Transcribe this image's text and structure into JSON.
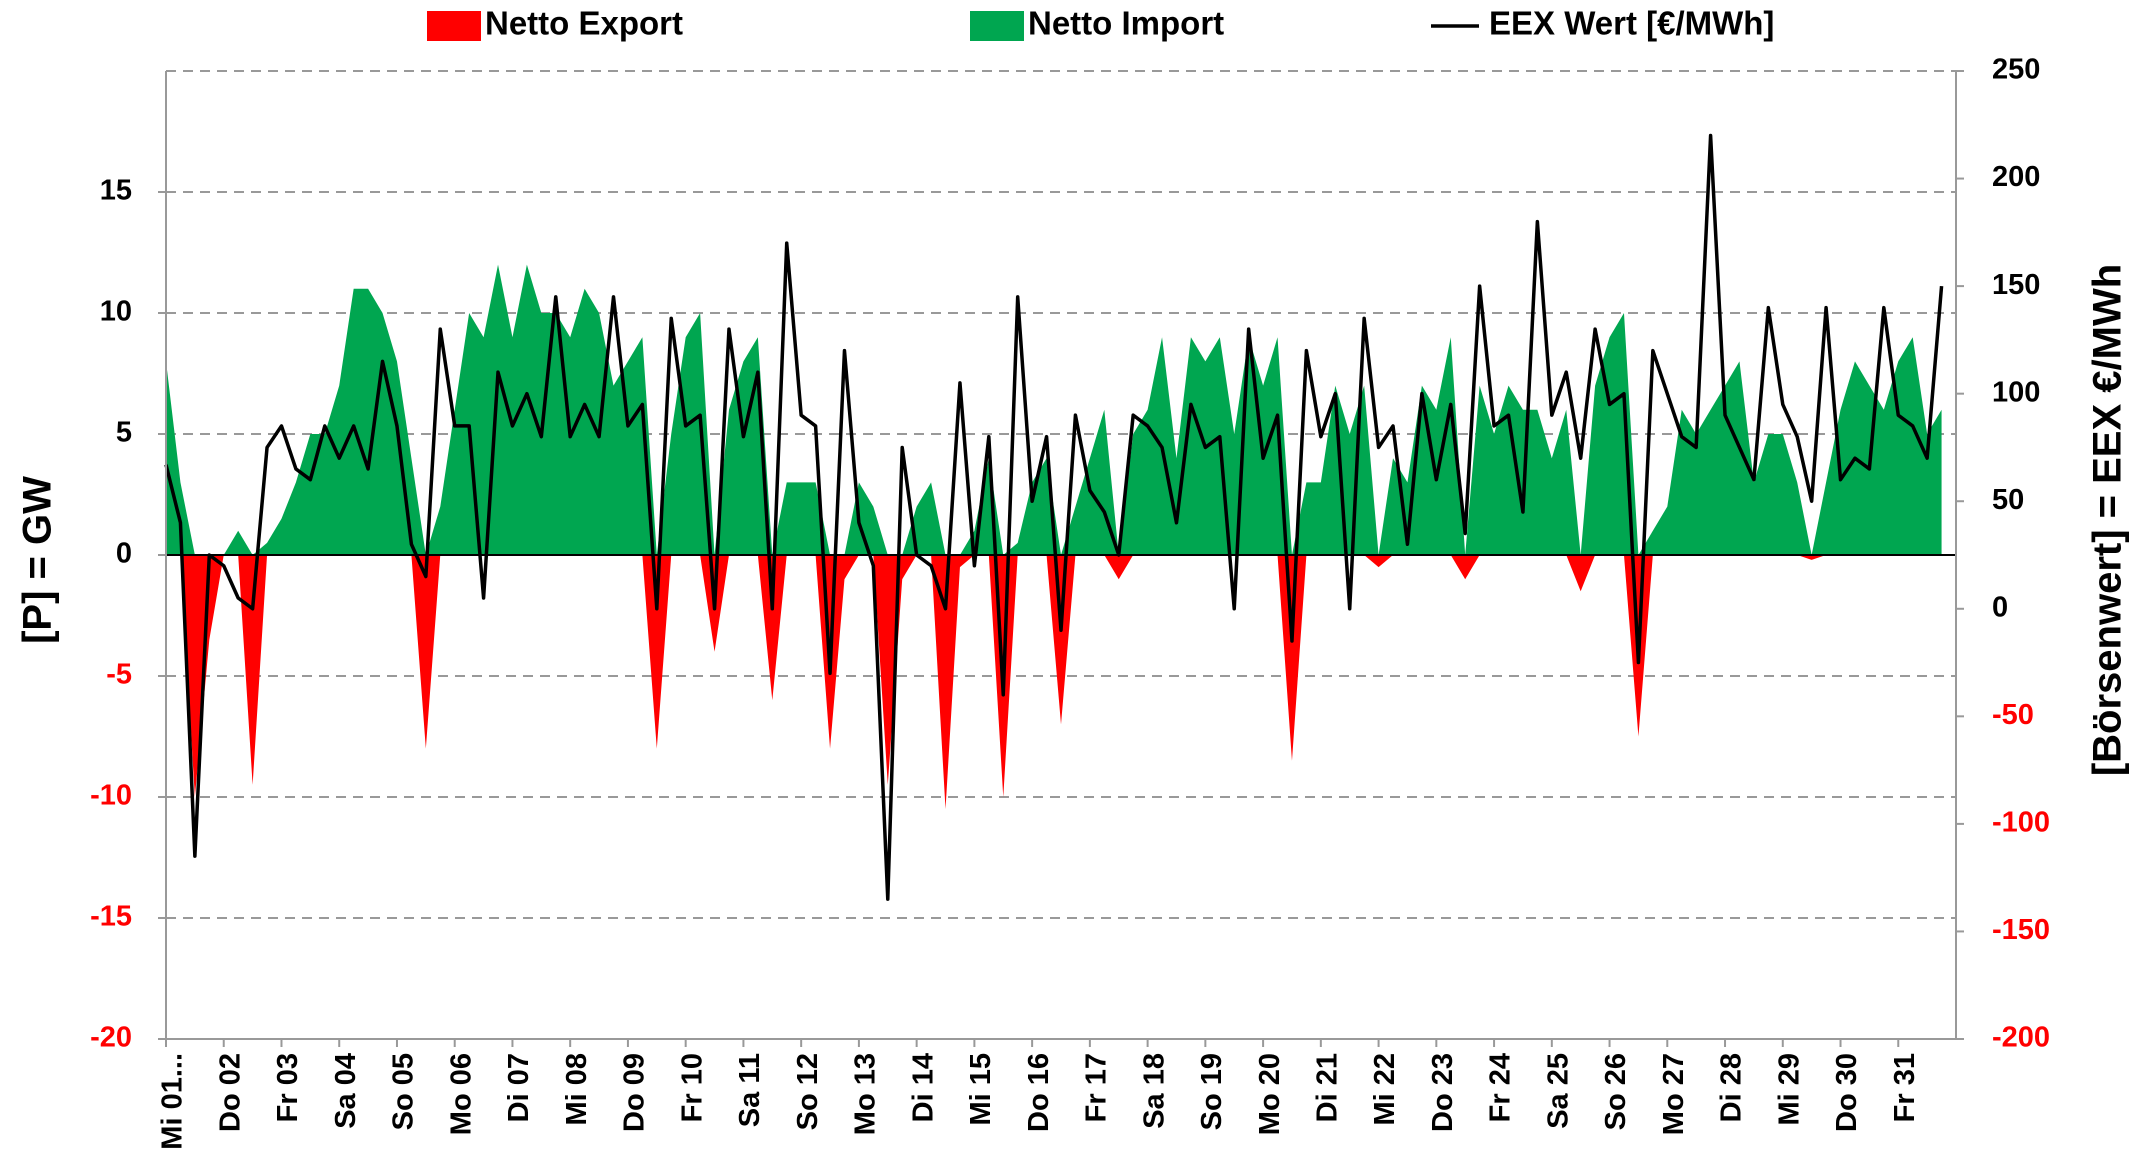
{
  "chart_data": {
    "type": "area",
    "categories": [
      "Mi 01...",
      null,
      null,
      null,
      "Do 02",
      null,
      null,
      null,
      "Fr 03",
      null,
      null,
      null,
      "Sa 04",
      null,
      null,
      null,
      "So 05",
      null,
      null,
      null,
      "Mo 06",
      null,
      null,
      null,
      "Di 07",
      null,
      null,
      null,
      "Mi 08",
      null,
      null,
      null,
      "Do 09",
      null,
      null,
      null,
      "Fr 10",
      null,
      null,
      null,
      "Sa 11",
      null,
      null,
      null,
      "So 12",
      null,
      null,
      null,
      "Mo 13",
      null,
      null,
      null,
      "Di 14",
      null,
      null,
      null,
      "Mi 15",
      null,
      null,
      null,
      "Do 16",
      null,
      null,
      null,
      "Fr 17",
      null,
      null,
      null,
      "Sa 18",
      null,
      null,
      null,
      "So 19",
      null,
      null,
      null,
      "Mo 20",
      null,
      null,
      null,
      "Di 21",
      null,
      null,
      null,
      "Mi 22",
      null,
      null,
      null,
      "Do 23",
      null,
      null,
      null,
      "Fr 24",
      null,
      null,
      null,
      "Sa 25",
      null,
      null,
      null,
      "So 26",
      null,
      null,
      null,
      "Mo 27",
      null,
      null,
      null,
      "Di 28",
      null,
      null,
      null,
      "Mi 29",
      null,
      null,
      null,
      "Do 30",
      null,
      null,
      null,
      "Fr 31",
      null,
      null,
      null
    ],
    "series": [
      {
        "name": "Netto Export",
        "color": "#ff0000",
        "values": [
          0,
          0,
          -10,
          -3.5,
          0,
          0,
          -9.5,
          0,
          0,
          0,
          0,
          0,
          0,
          0,
          0,
          0,
          0,
          0,
          -8,
          0,
          0,
          0,
          0,
          0,
          0,
          0,
          0,
          0,
          0,
          0,
          0,
          0,
          0,
          0,
          -8,
          0,
          0,
          0,
          -4,
          0,
          0,
          0,
          -6,
          0,
          0,
          0,
          -8,
          -1,
          0,
          0,
          -9.5,
          -1,
          0,
          0,
          -10.5,
          -0.5,
          0,
          0,
          -10,
          0,
          0,
          0,
          -7,
          0,
          0,
          0,
          -1,
          0,
          0,
          0,
          0,
          0,
          0,
          0,
          0,
          0,
          0,
          0,
          -8.5,
          0,
          0,
          0,
          0,
          0,
          -0.5,
          0,
          0,
          0,
          0,
          0,
          -1,
          0,
          0,
          0,
          0,
          0,
          0,
          0,
          -1.5,
          0,
          0,
          0,
          -7.5,
          0,
          0,
          0,
          0,
          0,
          0,
          0,
          0,
          0,
          0,
          0,
          -0.2,
          0,
          0,
          0,
          0,
          0,
          0,
          0,
          0,
          0
        ]
      },
      {
        "name": "Netto Import",
        "color": "#00a650",
        "values": [
          8,
          3,
          0,
          0,
          0,
          1,
          0,
          0.5,
          1.5,
          3,
          5,
          5,
          7,
          11,
          11,
          10,
          8,
          4,
          0,
          2,
          6,
          10,
          9,
          12,
          9,
          12,
          10,
          10,
          9,
          11,
          10,
          7,
          8,
          9,
          0,
          5,
          9,
          10,
          0,
          6,
          8,
          9,
          0,
          3,
          3,
          3,
          0,
          0,
          3,
          2,
          0,
          0,
          2,
          3,
          0,
          0,
          1,
          4,
          0,
          0.5,
          3,
          4,
          0,
          2,
          4,
          6,
          0,
          5,
          6,
          9,
          4,
          9,
          8,
          9,
          5,
          9,
          7,
          9,
          0,
          3,
          3,
          7,
          5,
          7,
          0,
          4,
          3,
          7,
          6,
          9,
          0,
          7,
          5,
          7,
          6,
          6,
          4,
          6,
          0,
          7,
          9,
          10,
          0,
          1,
          2,
          6,
          5,
          6,
          7,
          8,
          3,
          5,
          5,
          3,
          0,
          3,
          6,
          8,
          7,
          6,
          8,
          9,
          5,
          6
        ]
      },
      {
        "name": "EEX Wert [€/MWh]",
        "color": "#000000",
        "type": "line",
        "axis": "y2",
        "values": [
          67,
          40,
          -115,
          25,
          20,
          5,
          0,
          75,
          85,
          65,
          60,
          85,
          70,
          85,
          65,
          115,
          85,
          30,
          15,
          130,
          85,
          85,
          5,
          110,
          85,
          100,
          80,
          145,
          80,
          95,
          80,
          145,
          85,
          95,
          0,
          135,
          85,
          90,
          0,
          130,
          80,
          110,
          0,
          170,
          90,
          85,
          -30,
          120,
          40,
          20,
          -135,
          75,
          25,
          20,
          0,
          105,
          20,
          80,
          -40,
          145,
          50,
          80,
          -10,
          90,
          55,
          45,
          25,
          90,
          85,
          75,
          40,
          95,
          75,
          80,
          0,
          130,
          70,
          90,
          -15,
          120,
          80,
          100,
          0,
          135,
          75,
          85,
          30,
          100,
          60,
          95,
          35,
          150,
          85,
          90,
          45,
          180,
          90,
          110,
          70,
          130,
          95,
          100,
          -25,
          120,
          100,
          80,
          75,
          220,
          90,
          75,
          60,
          140,
          95,
          80,
          50,
          140,
          60,
          70,
          65,
          140,
          90,
          85,
          70,
          150
        ]
      }
    ],
    "y_label": "[P] = GW",
    "y2_label": "[Börsenwert] = EEX   €/MWh",
    "ylim": [
      -20,
      20
    ],
    "yticks": [
      -20,
      -15,
      -10,
      -5,
      0,
      5,
      10,
      15
    ],
    "y2lim": [
      -200,
      250
    ],
    "y2ticks": [
      -200,
      -150,
      -100,
      -50,
      0,
      50,
      100,
      150,
      200,
      250
    ],
    "negative_tick_color": "#ff0000",
    "grid": true
  }
}
